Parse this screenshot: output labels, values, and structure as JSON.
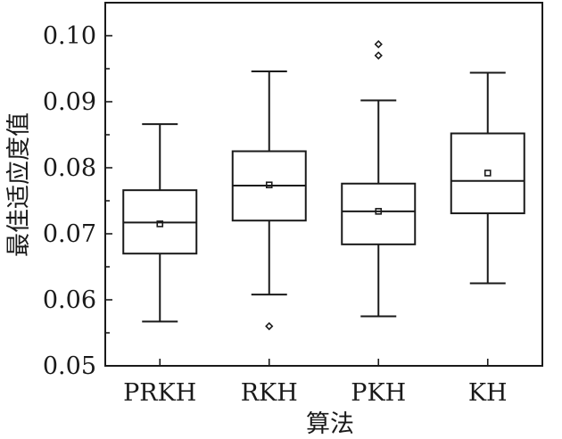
{
  "chart_data": {
    "type": "box",
    "xlabel": "算法",
    "ylabel": "最佳适应度值",
    "ylim": [
      0.05,
      0.105
    ],
    "yticks": [
      0.05,
      0.06,
      0.07,
      0.08,
      0.09,
      0.1
    ],
    "ytick_labels": [
      "0.05",
      "0.06",
      "0.07",
      "0.08",
      "0.09",
      "0.10"
    ],
    "categories": [
      "PRKH",
      "RKH",
      "PKH",
      "KH"
    ],
    "series": [
      {
        "category": "PRKH",
        "whisker_low": 0.0567,
        "q1": 0.067,
        "median": 0.0717,
        "q3": 0.0766,
        "whisker_high": 0.0866,
        "mean": 0.0715,
        "outliers": []
      },
      {
        "category": "RKH",
        "whisker_low": 0.0608,
        "q1": 0.072,
        "median": 0.0773,
        "q3": 0.0825,
        "whisker_high": 0.0946,
        "mean": 0.0774,
        "outliers": [
          0.056
        ]
      },
      {
        "category": "PKH",
        "whisker_low": 0.0575,
        "q1": 0.0684,
        "median": 0.0734,
        "q3": 0.0776,
        "whisker_high": 0.0902,
        "mean": 0.0734,
        "outliers": [
          0.097,
          0.0987
        ]
      },
      {
        "category": "KH",
        "whisker_low": 0.0625,
        "q1": 0.0731,
        "median": 0.078,
        "q3": 0.0852,
        "whisker_high": 0.0944,
        "mean": 0.0792,
        "outliers": []
      }
    ]
  }
}
